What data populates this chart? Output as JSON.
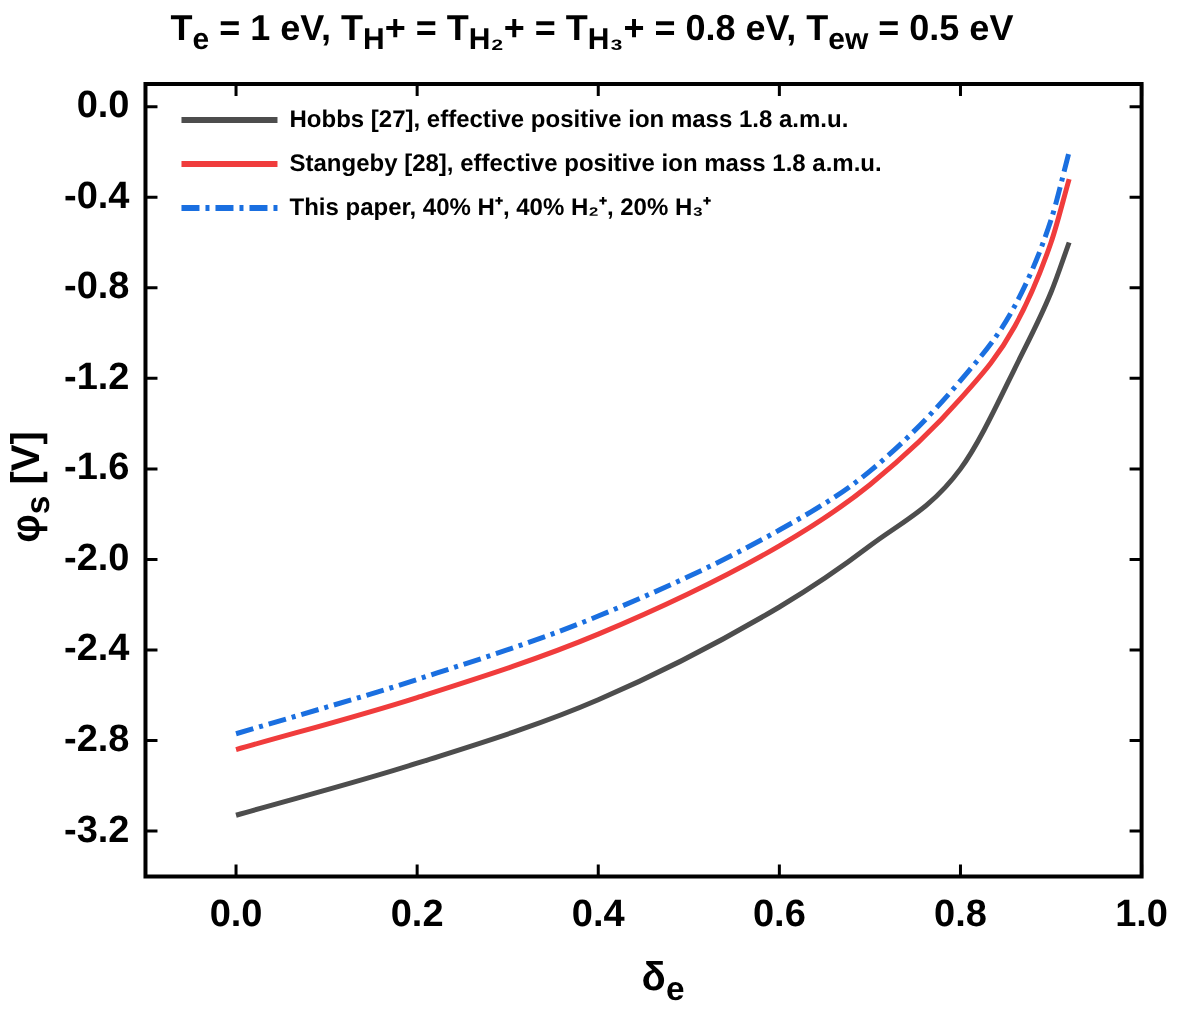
{
  "chart_data": {
    "type": "line",
    "title": "T$_{e}$ = 1 eV, T$_{H}$+ = T$_{H₂}$+ = T$_{H₃}$+ = 0.8 eV, T$_{ew}$ = 0.5 eV",
    "xlabel": "δ$_{e}$",
    "ylabel": "φ$_{s}$ [V]",
    "xlim": [
      -0.1,
      1.0
    ],
    "xticks": [
      {
        "value": 0,
        "label": "0.0"
      },
      0.2,
      0.4,
      0.6,
      0.8,
      {
        "value": 1,
        "label": "1.0"
      }
    ],
    "ylim": [
      -3.4,
      0.1
    ],
    "yticks": [
      -3.2,
      -2.8,
      -2.4,
      {
        "value": -2,
        "label": "-2.0"
      },
      -1.6,
      -1.2,
      -0.8,
      -0.4,
      {
        "value": 0,
        "label": "0.0"
      }
    ],
    "grid": false,
    "legend": "top left",
    "marker": "none",
    "series": [
      {
        "name": "Hobbs [27], effective positive ion mass 1.8 a.m.u.",
        "color": "#4d4d4d",
        "line_style": "solid",
        "x": [
          0,
          0.2,
          0.4,
          0.6,
          0.7,
          0.8,
          0.867,
          0.9,
          0.92
        ],
        "values": [
          -3.13,
          -2.9,
          -2.62,
          -2.21,
          -1.94,
          -1.6,
          -1.1,
          -0.82,
          -0.6
        ]
      },
      {
        "name": "Stangeby [28], effective positive ion mass 1.8 a.m.u.",
        "color": "#f03c3c",
        "line_style": "solid",
        "x": [
          0,
          0.2,
          0.4,
          0.6,
          0.7,
          0.8,
          0.86,
          0.9,
          0.92
        ],
        "values": [
          -2.84,
          -2.61,
          -2.33,
          -1.94,
          -1.67,
          -1.29,
          -0.97,
          -0.6,
          -0.32
        ]
      },
      {
        "name": "This paper, 40% H⁺, 40% H₂⁺, 20% H₃⁺",
        "color": "#1a6fe0",
        "line_style": "dashed",
        "x": [
          0,
          0.2,
          0.4,
          0.6,
          0.7,
          0.8,
          0.86,
          0.9,
          0.92
        ],
        "values": [
          -2.77,
          -2.53,
          -2.25,
          -1.87,
          -1.61,
          -1.21,
          -0.88,
          -0.5,
          -0.2
        ]
      }
    ]
  }
}
